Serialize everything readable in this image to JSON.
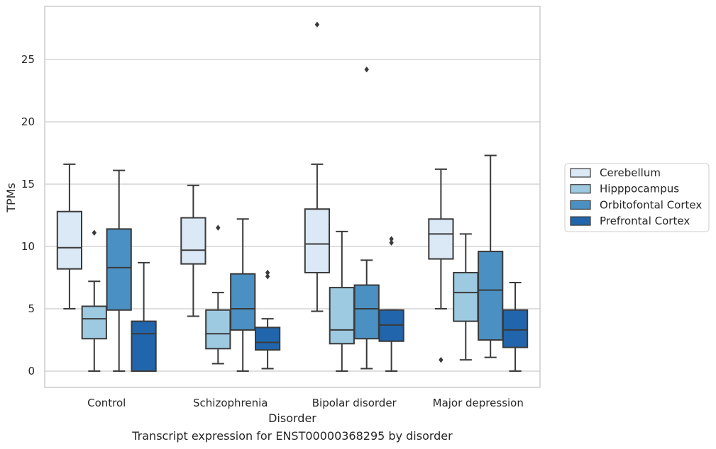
{
  "caption": "Transcript expression for ENST00000368295 by disorder",
  "chart_data": {
    "type": "box",
    "title": "",
    "xlabel": "Disorder",
    "ylabel": "TPMs",
    "ylim": [
      -1.3,
      28.8
    ],
    "yticks": [
      0,
      5,
      10,
      15,
      20,
      25
    ],
    "grid": "horizontal",
    "legend_position": "right",
    "categories": [
      "Control",
      "Schizophrenia",
      "Bipolar disorder",
      "Major depression"
    ],
    "series": [
      {
        "name": "Cerebellum",
        "color": "#dbe9f6",
        "boxes": [
          {
            "whislo": 5.0,
            "q1": 8.2,
            "med": 9.9,
            "q3": 12.8,
            "whishi": 16.6,
            "fliers": []
          },
          {
            "whislo": 4.4,
            "q1": 8.6,
            "med": 9.7,
            "q3": 12.3,
            "whishi": 14.9,
            "fliers": []
          },
          {
            "whislo": 4.8,
            "q1": 7.9,
            "med": 10.2,
            "q3": 13.0,
            "whishi": 16.6,
            "fliers": [
              27.8
            ]
          },
          {
            "whislo": 5.0,
            "q1": 9.0,
            "med": 11.0,
            "q3": 12.2,
            "whishi": 16.2,
            "fliers": [
              0.9
            ]
          }
        ]
      },
      {
        "name": "Hipppocampus",
        "color": "#9ecae1",
        "boxes": [
          {
            "whislo": 0.0,
            "q1": 2.6,
            "med": 4.2,
            "q3": 5.2,
            "whishi": 7.2,
            "fliers": [
              11.1
            ]
          },
          {
            "whislo": 0.6,
            "q1": 1.8,
            "med": 3.0,
            "q3": 4.9,
            "whishi": 6.3,
            "fliers": [
              11.5
            ]
          },
          {
            "whislo": 0.0,
            "q1": 2.2,
            "med": 3.3,
            "q3": 6.7,
            "whishi": 11.2,
            "fliers": []
          },
          {
            "whislo": 0.9,
            "q1": 4.0,
            "med": 6.3,
            "q3": 7.9,
            "whishi": 11.0,
            "fliers": []
          }
        ]
      },
      {
        "name": "Orbitofontal Cortex",
        "color": "#4a90c2",
        "boxes": [
          {
            "whislo": 0.0,
            "q1": 4.9,
            "med": 8.3,
            "q3": 11.4,
            "whishi": 16.1,
            "fliers": []
          },
          {
            "whislo": 0.0,
            "q1": 3.3,
            "med": 5.0,
            "q3": 7.8,
            "whishi": 12.2,
            "fliers": []
          },
          {
            "whislo": 0.2,
            "q1": 2.6,
            "med": 5.0,
            "q3": 6.9,
            "whishi": 8.9,
            "fliers": [
              24.2
            ]
          },
          {
            "whislo": 1.1,
            "q1": 2.5,
            "med": 6.5,
            "q3": 9.6,
            "whishi": 17.3,
            "fliers": []
          }
        ]
      },
      {
        "name": "Prefrontal Cortex",
        "color": "#2166ac",
        "boxes": [
          {
            "whislo": 0.0,
            "q1": 0.0,
            "med": 3.0,
            "q3": 4.0,
            "whishi": 8.7,
            "fliers": []
          },
          {
            "whislo": 0.2,
            "q1": 1.7,
            "med": 2.3,
            "q3": 3.5,
            "whishi": 4.2,
            "fliers": [
              7.6,
              7.9
            ]
          },
          {
            "whislo": 0.0,
            "q1": 2.4,
            "med": 3.7,
            "q3": 4.9,
            "whishi": 4.9,
            "fliers": [
              10.3,
              10.6
            ]
          },
          {
            "whislo": 0.0,
            "q1": 1.9,
            "med": 3.3,
            "q3": 4.9,
            "whishi": 7.1,
            "fliers": []
          }
        ]
      }
    ]
  }
}
